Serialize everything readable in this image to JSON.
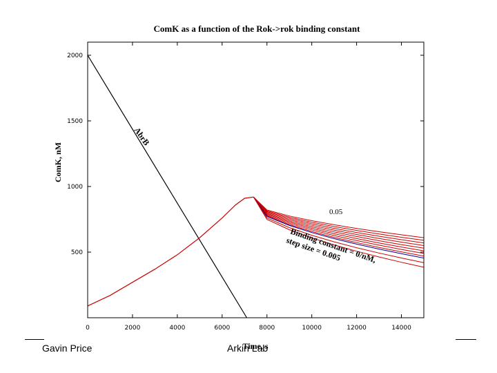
{
  "chart_data": {
    "type": "line",
    "title": "ComK as a function of the Rok->rok binding constant",
    "xlabel": "Time, s",
    "ylabel": "ComK, nM",
    "xlim": [
      0,
      15000
    ],
    "ylim": [
      0,
      2100
    ],
    "x_ticks": [
      0,
      2000,
      4000,
      6000,
      8000,
      10000,
      12000,
      14000
    ],
    "y_ticks": [
      500,
      1000,
      1500,
      2000
    ],
    "x_tick_labels": [
      "0",
      "2000",
      "4000",
      "6000",
      "8000",
      "10000",
      "12000",
      "14000"
    ],
    "y_tick_labels": [
      "500",
      "1000",
      "1500",
      "2000"
    ],
    "series": [
      {
        "name": "AbrB",
        "color": "#000000",
        "x": [
          0,
          7100
        ],
        "y": [
          2000,
          0
        ]
      },
      {
        "name": "ComK rise",
        "color": "#cc0000",
        "x": [
          0,
          1000,
          2000,
          3000,
          4000,
          5000,
          6000,
          6600,
          7000,
          7400
        ],
        "y": [
          90,
          170,
          270,
          370,
          480,
          610,
          760,
          860,
          910,
          920
        ]
      }
    ],
    "decay_family": {
      "color": "#cc0000",
      "highlight_color": "#000099",
      "peak_x": 7400,
      "peak_y": 920,
      "x": [
        7400,
        8000,
        9000,
        10000,
        11000,
        12000,
        13000,
        14000,
        15000
      ],
      "curve_count": 11,
      "highlight_index": 8,
      "end_values": [
        610,
        590,
        570,
        550,
        530,
        510,
        490,
        470,
        455,
        420,
        385
      ]
    },
    "annotations": {
      "abrb": "AbrB",
      "top_value": "0.05",
      "binding_line1": "Binding constant = 0/nM,",
      "binding_line2": "step size = 0.005"
    }
  },
  "footer": {
    "left": "Gavin Price",
    "right": "Arkin Lab"
  }
}
